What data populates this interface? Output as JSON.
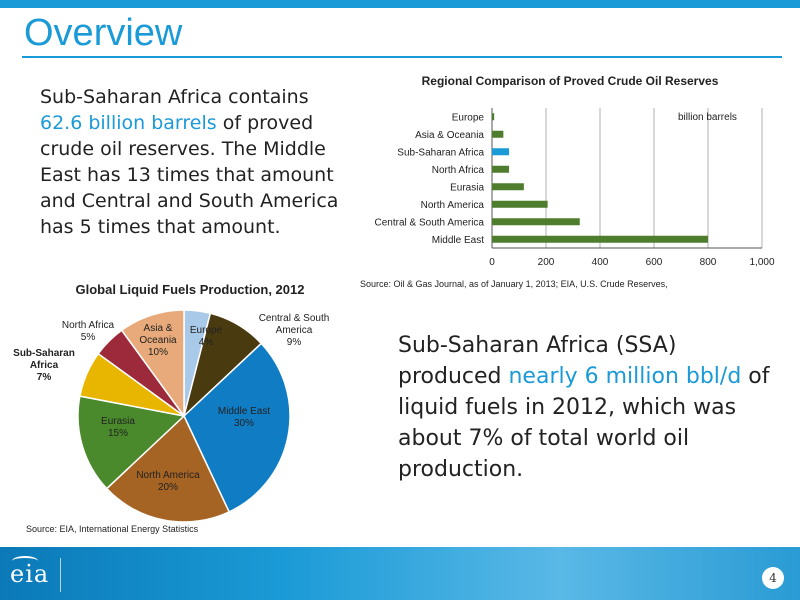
{
  "slide": {
    "title": "Overview",
    "page_number": "4",
    "logo_text": "eia"
  },
  "paragraph1": {
    "pre": "Sub-Saharan Africa contains ",
    "highlight": "62.6 billion barrels",
    "post": " of proved crude oil reserves. The Middle East has 13 times that amount and Central and South America has 5 times that amount."
  },
  "paragraph2": {
    "pre": "Sub-Saharan Africa (SSA) produced ",
    "highlight": "nearly 6 million bbl/d",
    "post": " of liquid fuels in 2012, which was about 7% of total world oil production."
  },
  "colors": {
    "accent": "#1a9ad6",
    "bar_default": "#4e7d2d",
    "bar_highlight": "#1a9ad6"
  },
  "chart_data": [
    {
      "type": "bar",
      "orientation": "horizontal",
      "title": "Regional Comparison of Proved Crude Oil Reserves",
      "unit_label": "billion barrels",
      "categories": [
        "Europe",
        "Asia & Oceania",
        "Sub-Saharan Africa",
        "North Africa",
        "Eurasia",
        "North America",
        "Central & South America",
        "Middle East"
      ],
      "values": [
        8,
        42,
        63,
        63,
        118,
        206,
        325,
        800
      ],
      "highlight": "Sub-Saharan Africa",
      "xlim": [
        0,
        1000
      ],
      "xticks": [
        "0",
        "200",
        "400",
        "600",
        "800",
        "1,000"
      ],
      "grid": true,
      "source": "Source: Oil & Gas Journal, as of January 1, 2013; EIA, U.S. Crude Reserves,"
    },
    {
      "type": "pie",
      "title": "Global Liquid Fuels Production, 2012",
      "slices": [
        {
          "name": "Europe",
          "label": "4%",
          "value": 4,
          "color": "#a9c9e8"
        },
        {
          "name": "Central & South America",
          "label": "9%",
          "value": 9,
          "color": "#4a3a10"
        },
        {
          "name": "Middle East",
          "label": "30%",
          "value": 30,
          "color": "#0f7cc4"
        },
        {
          "name": "North America",
          "label": "20%",
          "value": 20,
          "color": "#a66424"
        },
        {
          "name": "Eurasia",
          "label": "15%",
          "value": 15,
          "color": "#4a8a2c"
        },
        {
          "name": "Sub-Saharan Africa",
          "label": "7%",
          "value": 7,
          "color": "#e8b500",
          "bold": true
        },
        {
          "name": "North Africa",
          "label": "5%",
          "value": 5,
          "color": "#9c2a3a"
        },
        {
          "name": "Asia & Oceania",
          "label": "10%",
          "value": 10,
          "color": "#e8aa7a"
        }
      ],
      "source": "Source: EIA, International Energy Statistics"
    }
  ]
}
